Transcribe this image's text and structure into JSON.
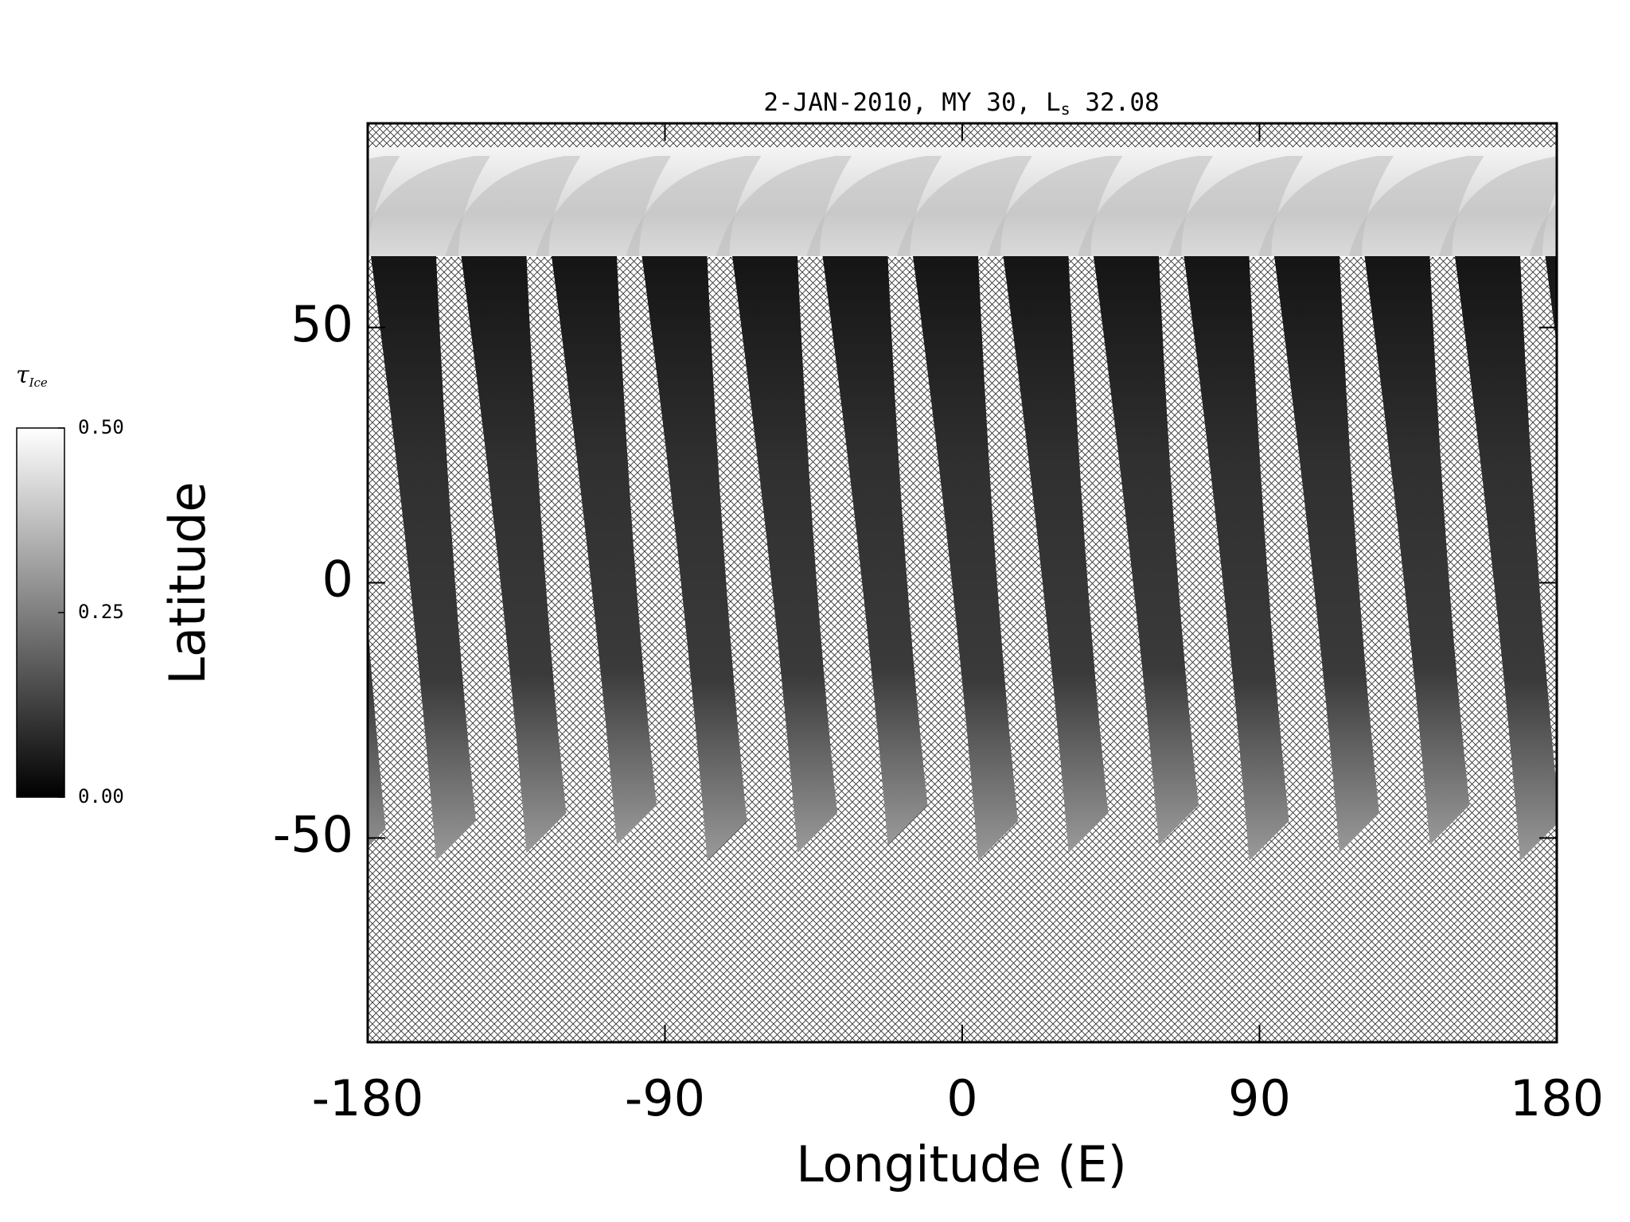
{
  "chart_data": {
    "type": "map",
    "title": {
      "text": "2-JAN-2010, MY 30,  L",
      "subscript": "s",
      "suffix": " 32.08"
    },
    "xlabel": "Longitude (E)",
    "ylabel": "Latitude",
    "xlim": [
      -180,
      180
    ],
    "xticks": [
      -180,
      -90,
      0,
      90,
      180
    ],
    "ylim": [
      -90,
      90
    ],
    "yticks": [
      -50,
      0,
      50
    ],
    "colorbar": {
      "label": "τ",
      "label_subscript": "Ice",
      "clim": [
        0,
        0.5
      ],
      "ticks": [
        {
          "value": 0,
          "label": "0.00"
        },
        {
          "value": 0.25,
          "label": "0.25"
        },
        {
          "value": 0.5,
          "label": "0.50"
        }
      ]
    }
  }
}
